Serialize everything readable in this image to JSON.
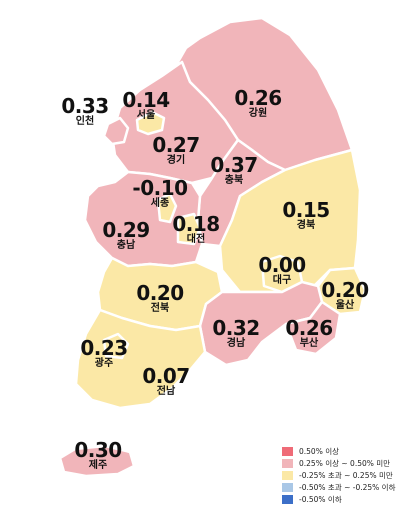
{
  "colors": {
    "up_0_25_to_0_50": "#F1B5BA",
    "neutral": "#FBE8A6",
    "above_0_50": "#EF6B77",
    "down_0_25_to_0_50": "#A9C7E6",
    "below_neg_0_50": "#3C6FC8",
    "outline": "#FFFFFF"
  },
  "regions": {
    "incheon": {
      "value": "0.33",
      "name": "인천",
      "category": "up_0_25_to_0_50"
    },
    "seoul": {
      "value": "0.14",
      "name": "서울",
      "category": "neutral"
    },
    "gangwon": {
      "value": "0.26",
      "name": "강원",
      "category": "up_0_25_to_0_50"
    },
    "gyeonggi": {
      "value": "0.27",
      "name": "경기",
      "category": "up_0_25_to_0_50"
    },
    "chungbuk": {
      "value": "0.37",
      "name": "충북",
      "category": "up_0_25_to_0_50"
    },
    "sejong": {
      "value": "-0.10",
      "name": "세종",
      "category": "neutral"
    },
    "chungnam": {
      "value": "0.29",
      "name": "충남",
      "category": "up_0_25_to_0_50"
    },
    "daejeon": {
      "value": "0.18",
      "name": "대전",
      "category": "neutral"
    },
    "gyeongbuk": {
      "value": "0.15",
      "name": "경북",
      "category": "neutral"
    },
    "daegu": {
      "value": "0.00",
      "name": "대구",
      "category": "neutral"
    },
    "jeonbuk": {
      "value": "0.20",
      "name": "전북",
      "category": "neutral"
    },
    "ulsan": {
      "value": "0.20",
      "name": "울산",
      "category": "neutral"
    },
    "gyeongnam": {
      "value": "0.32",
      "name": "경남",
      "category": "up_0_25_to_0_50"
    },
    "busan": {
      "value": "0.26",
      "name": "부산",
      "category": "up_0_25_to_0_50"
    },
    "gwangju": {
      "value": "0.23",
      "name": "광주",
      "category": "neutral"
    },
    "jeonnam": {
      "value": "0.07",
      "name": "전남",
      "category": "neutral"
    },
    "jeju": {
      "value": "0.30",
      "name": "제주",
      "category": "up_0_25_to_0_50"
    }
  },
  "legend": [
    {
      "label": "0.50% 이상",
      "color": "#EF6B77"
    },
    {
      "label": "0.25% 이상 ~ 0.50% 미만",
      "color": "#F1B5BA"
    },
    {
      "label": "-0.25% 초과 ~ 0.25% 미만",
      "color": "#FBE8A6"
    },
    {
      "label": "-0.50% 초과 ~ -0.25% 이하",
      "color": "#A9C7E6"
    },
    {
      "label": "-0.50% 이하",
      "color": "#3C6FC8"
    }
  ]
}
